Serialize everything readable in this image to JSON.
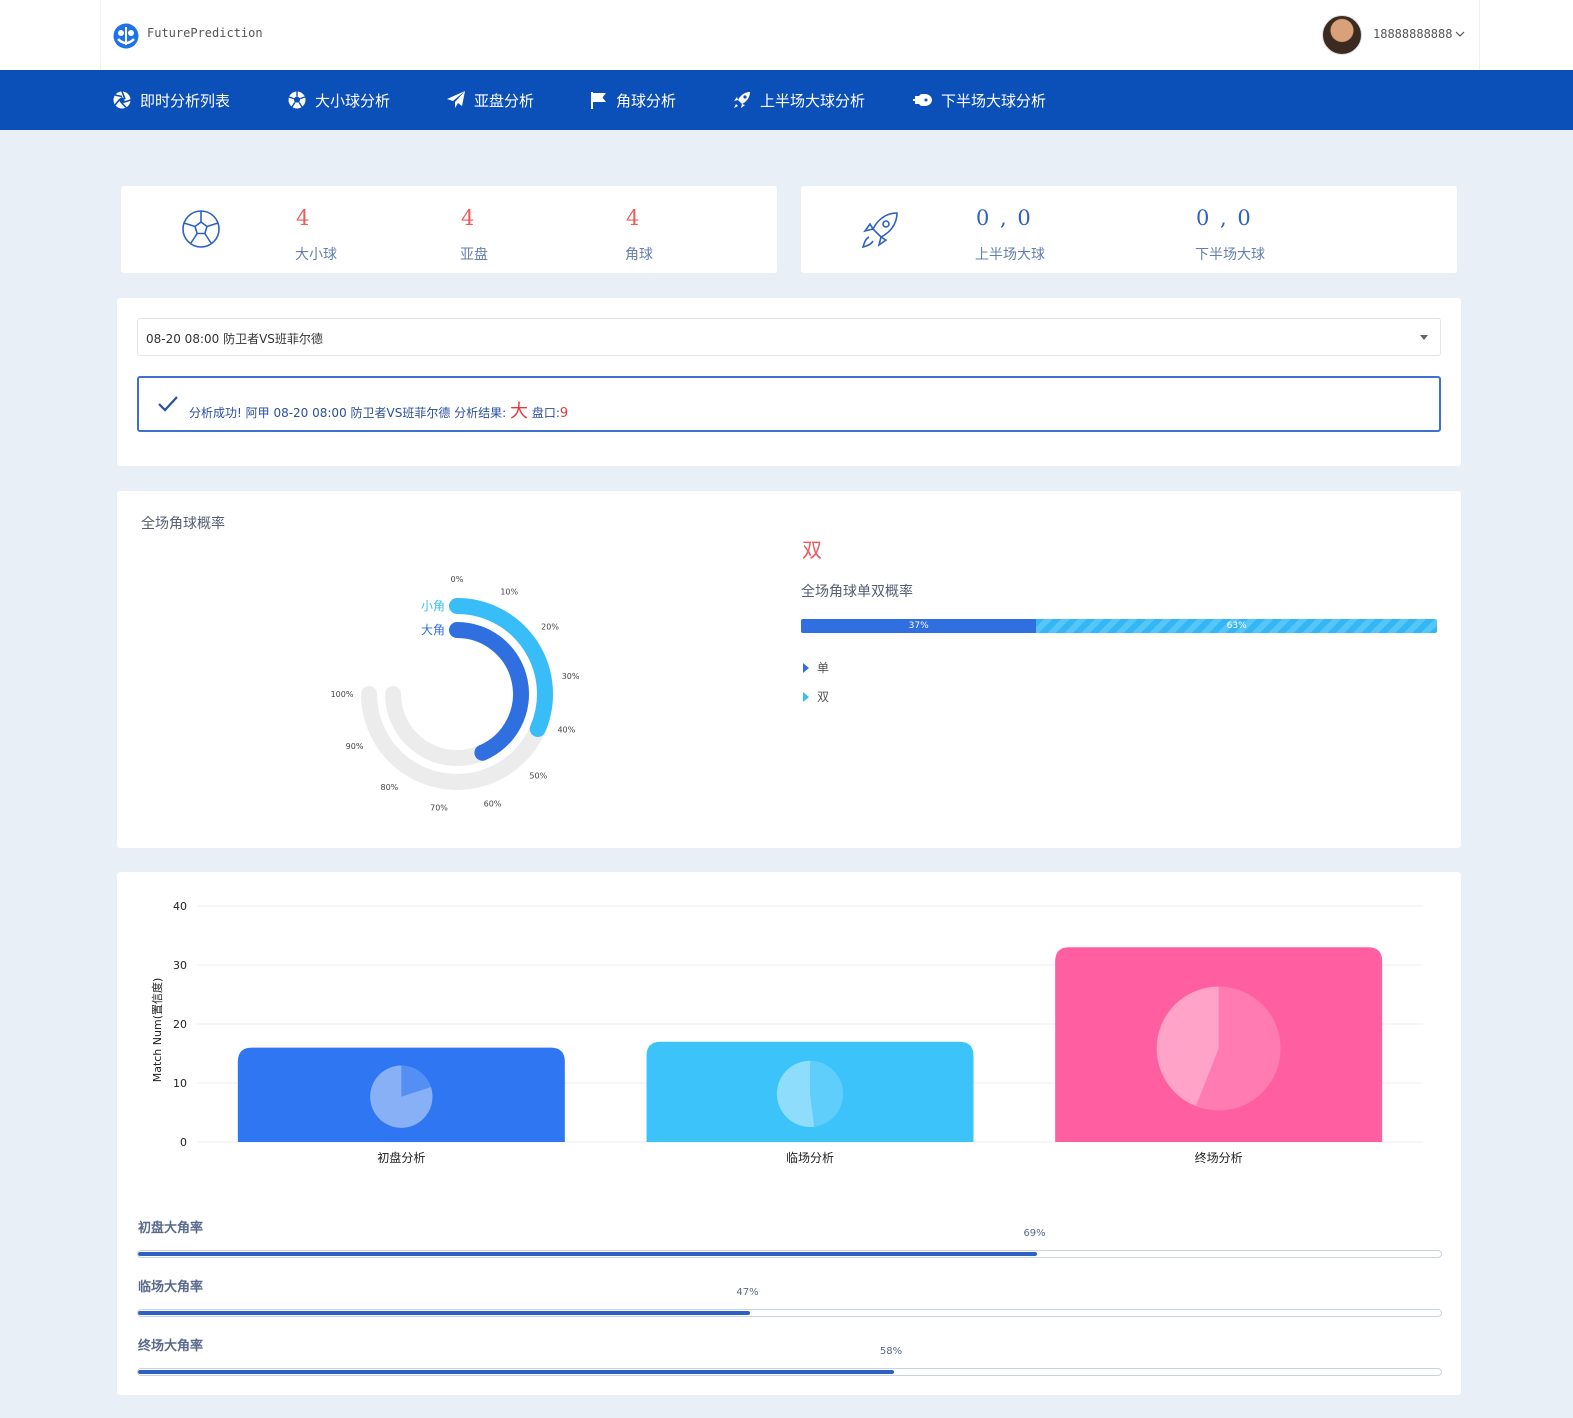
{
  "header": {
    "brand": "FuturePrediction",
    "user_phone": "18888888888"
  },
  "nav": {
    "items": [
      {
        "label": "即时分析列表",
        "icon": "aperture-icon"
      },
      {
        "label": "大小球分析",
        "icon": "football-icon"
      },
      {
        "label": "亚盘分析",
        "icon": "paper-plane-icon"
      },
      {
        "label": "角球分析",
        "icon": "flag-icon"
      },
      {
        "label": "上半场大球分析",
        "icon": "rocket-icon"
      },
      {
        "label": "下半场大球分析",
        "icon": "space-shuttle-icon"
      }
    ]
  },
  "stats_left": {
    "icon": "football-icon",
    "items": [
      {
        "value": "4",
        "label": "大小球"
      },
      {
        "value": "4",
        "label": "亚盘"
      },
      {
        "value": "4",
        "label": "角球"
      }
    ]
  },
  "stats_right": {
    "icon": "rocket-icon",
    "items": [
      {
        "value": "0 , 0",
        "label": "上半场大球"
      },
      {
        "value": "0 , 0",
        "label": "下半场大球"
      }
    ]
  },
  "match_select": {
    "value": "08-20 08:00 防卫者VS班菲尔德"
  },
  "alert": {
    "prefix": "分析成功! 阿甲 08-20 08:00 防卫者VS班菲尔德 分析结果:",
    "result": "大",
    "pan_label": "盘口:",
    "pan_value": "9"
  },
  "corner_section": {
    "title": "全场角球概率",
    "result": "双",
    "odd_even_title": "全场角球单双概率",
    "odd_even": {
      "odd_pct": 37,
      "even_pct": 63,
      "odd_label": "37%",
      "even_label": "63%"
    },
    "legend": [
      {
        "label": "单",
        "color": "#2f6fe0"
      },
      {
        "label": "双",
        "color": "#38bdf8"
      }
    ]
  },
  "chart_data": [
    {
      "type": "radial-bar",
      "series": [
        {
          "name": "小角",
          "value": 42,
          "color": "#38bdf8"
        },
        {
          "name": "大角",
          "value": 58,
          "color": "#2f6fe0"
        }
      ],
      "ticks": [
        "0%",
        "10%",
        "20%",
        "30%",
        "40%",
        "50%",
        "60%",
        "70%",
        "80%",
        "90%",
        "100%"
      ],
      "ylim": [
        0,
        100
      ]
    },
    {
      "type": "bar",
      "categories": [
        "初盘分析",
        "临场分析",
        "终场分析"
      ],
      "values": [
        16,
        17,
        33
      ],
      "colors": [
        "#2f77f2",
        "#3cc4fa",
        "#ff5ea0"
      ],
      "ylabel": "Match Num(置信度)",
      "ylim": [
        0,
        40
      ],
      "yticks": [
        "0",
        "10",
        "20",
        "30",
        "40"
      ],
      "inner_pies": [
        0.2,
        0.48,
        0.56
      ]
    }
  ],
  "progress": [
    {
      "label": "初盘大角率",
      "pct": 69,
      "pct_label": "69%"
    },
    {
      "label": "临场大角率",
      "pct": 47,
      "pct_label": "47%"
    },
    {
      "label": "终场大角率",
      "pct": 58,
      "pct_label": "58%"
    }
  ]
}
